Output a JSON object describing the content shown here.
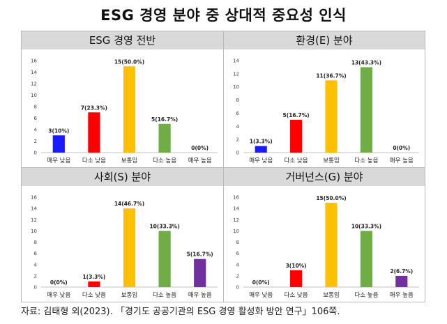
{
  "title": "ESG 경영 분야 중 상대적 중요성 인식",
  "source": "자료: 김태형 외(2023). 「경기도 공공기관의 ESG 경영 활성화 방안 연구」106쪽.",
  "colors": {
    "very_low": "#1a1aff",
    "low": "#ff0000",
    "normal": "#ffc000",
    "high": "#70ad47",
    "very_high": "#7030a0"
  },
  "chart_data": [
    {
      "type": "bar",
      "title": "ESG 경영 전반",
      "categories": [
        "매우 낮음",
        "다소 낮음",
        "보통임",
        "다소 높음",
        "매우 높음"
      ],
      "values": [
        3,
        7,
        15,
        5,
        0
      ],
      "data_labels": [
        "3(10%)",
        "7(23.3%)",
        "15(50.0%)",
        "5(16.7%)",
        "0(0%)"
      ],
      "bar_colors": [
        "#1a1aff",
        "#ff0000",
        "#ffc000",
        "#70ad47",
        "#7030a0"
      ],
      "ylim": [
        0,
        16
      ],
      "yticks": [
        "0",
        "2",
        "4",
        "6",
        "8",
        "10",
        "12",
        "14",
        "16"
      ]
    },
    {
      "type": "bar",
      "title": "환경(E) 분야",
      "categories": [
        "매우 낮음",
        "다소 낮음",
        "보통임",
        "다소 높음",
        "매우 높음"
      ],
      "values": [
        1,
        5,
        11,
        13,
        0
      ],
      "data_labels": [
        "1(3.3%)",
        "5(16.7%)",
        "11(36.7%)",
        "13(43.3%)",
        "0(0%)"
      ],
      "bar_colors": [
        "#1a1aff",
        "#ff0000",
        "#ffc000",
        "#70ad47",
        "#7030a0"
      ],
      "ylim": [
        0,
        14
      ],
      "yticks": [
        "0",
        "2",
        "4",
        "6",
        "8",
        "10",
        "12",
        "14"
      ]
    },
    {
      "type": "bar",
      "title": "사회(S) 분야",
      "categories": [
        "매우 낮음",
        "다소 낮음",
        "보통임",
        "다소 높음",
        "매우 높음"
      ],
      "values": [
        0,
        1,
        14,
        10,
        5
      ],
      "data_labels": [
        "0(0%)",
        "1(3.3%)",
        "14(46.7%)",
        "10(33.3%)",
        "5(16.7%)"
      ],
      "bar_colors": [
        "#1a1aff",
        "#ff0000",
        "#ffc000",
        "#70ad47",
        "#7030a0"
      ],
      "ylim": [
        0,
        16
      ],
      "yticks": [
        "0",
        "2",
        "4",
        "6",
        "8",
        "10",
        "12",
        "14",
        "16"
      ]
    },
    {
      "type": "bar",
      "title": "거버넌스(G) 분야",
      "categories": [
        "매우 낮음",
        "다소 낮음",
        "보통임",
        "다소 높음",
        "매우 높음"
      ],
      "values": [
        0,
        3,
        15,
        10,
        2
      ],
      "data_labels": [
        "0(0%)",
        "3(10%)",
        "15(50.0%)",
        "10(33.3%)",
        "2(6.7%)"
      ],
      "bar_colors": [
        "#1a1aff",
        "#ff0000",
        "#ffc000",
        "#70ad47",
        "#7030a0"
      ],
      "ylim": [
        0,
        16
      ],
      "yticks": [
        "0",
        "2",
        "4",
        "6",
        "8",
        "10",
        "12",
        "14",
        "16"
      ]
    }
  ]
}
